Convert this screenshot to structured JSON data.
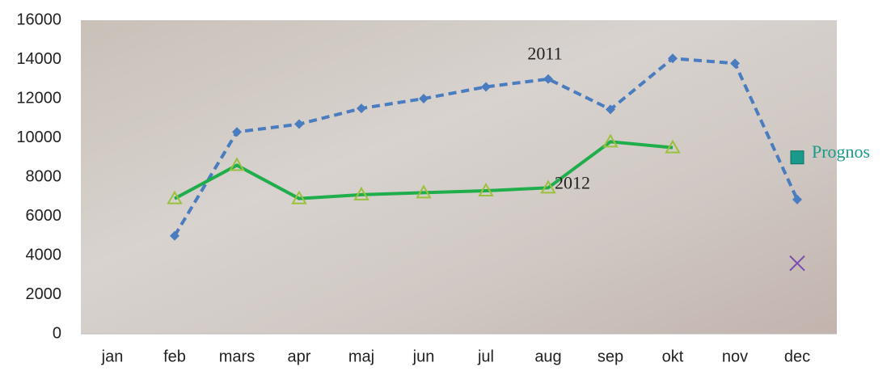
{
  "chart_data": {
    "type": "line",
    "categories": [
      "jan",
      "feb",
      "mars",
      "apr",
      "maj",
      "jun",
      "jul",
      "aug",
      "sep",
      "okt",
      "nov",
      "dec"
    ],
    "series": [
      {
        "name": "2011",
        "color": "#4a7cc0",
        "dash": true,
        "marker": "diamond",
        "values": [
          null,
          5000,
          10300,
          10700,
          11500,
          12000,
          12600,
          13000,
          11450,
          14050,
          13800,
          6850
        ]
      },
      {
        "name": "2012",
        "color": "#1fae4b",
        "dash": false,
        "marker": "triangle",
        "values": [
          null,
          6900,
          8600,
          6900,
          7100,
          7200,
          7300,
          7450,
          9800,
          9500,
          null,
          null
        ]
      },
      {
        "name": "Prognos",
        "color": "#1a9a8a",
        "dash": false,
        "marker": "square",
        "values": [
          null,
          null,
          null,
          null,
          null,
          null,
          null,
          null,
          null,
          null,
          null,
          9000
        ]
      },
      {
        "color": "#7a4bb0",
        "dash": false,
        "marker": "x",
        "values": [
          null,
          null,
          null,
          null,
          null,
          null,
          null,
          null,
          null,
          null,
          null,
          3600
        ]
      }
    ],
    "ylim": [
      0,
      16000
    ],
    "yticks": [
      0,
      2000,
      4000,
      6000,
      8000,
      10000,
      12000,
      14000,
      16000
    ]
  }
}
